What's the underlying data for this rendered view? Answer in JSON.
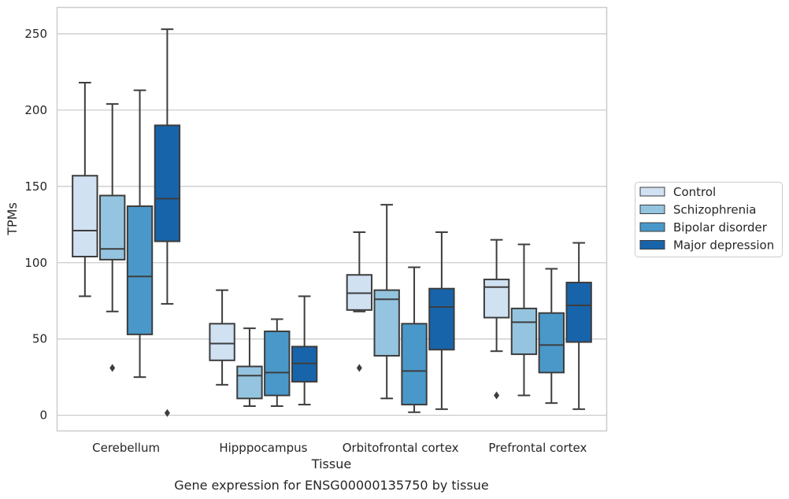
{
  "chart_data": {
    "type": "box",
    "title": "Gene expression for ENSG00000135750 by tissue",
    "xlabel": "Tissue",
    "ylabel": "TPMs",
    "ylim": [
      -10,
      267
    ],
    "yticks": [
      0,
      50,
      100,
      150,
      200,
      250
    ],
    "grid": "y",
    "legend_position": "right",
    "categories": [
      "Cerebellum",
      "Hipppocampus",
      "Orbitofrontal cortex",
      "Prefrontal cortex"
    ],
    "series": [
      {
        "name": "Control",
        "color": "#d0e1f2",
        "boxes": [
          {
            "whisker_low": 78,
            "q1": 104,
            "median": 121,
            "q3": 157,
            "whisker_high": 218,
            "outliers": []
          },
          {
            "whisker_low": 20,
            "q1": 36,
            "median": 47,
            "q3": 60,
            "whisker_high": 82,
            "outliers": []
          },
          {
            "whisker_low": 68,
            "q1": 69,
            "median": 80,
            "q3": 92,
            "whisker_high": 120,
            "outliers": [
              31
            ]
          },
          {
            "whisker_low": 42,
            "q1": 64,
            "median": 84,
            "q3": 89,
            "whisker_high": 115,
            "outliers": [
              13
            ]
          }
        ]
      },
      {
        "name": "Schizophrenia",
        "color": "#94c4df",
        "boxes": [
          {
            "whisker_low": 68,
            "q1": 102,
            "median": 109,
            "q3": 144,
            "whisker_high": 204,
            "outliers": [
              31
            ]
          },
          {
            "whisker_low": 6,
            "q1": 11,
            "median": 26,
            "q3": 32,
            "whisker_high": 57,
            "outliers": []
          },
          {
            "whisker_low": 11,
            "q1": 39,
            "median": 76,
            "q3": 82,
            "whisker_high": 138,
            "outliers": []
          },
          {
            "whisker_low": 13,
            "q1": 40,
            "median": 61,
            "q3": 70,
            "whisker_high": 112,
            "outliers": []
          }
        ]
      },
      {
        "name": "Bipolar disorder",
        "color": "#4a98c9",
        "boxes": [
          {
            "whisker_low": 25,
            "q1": 53,
            "median": 91,
            "q3": 137,
            "whisker_high": 213,
            "outliers": []
          },
          {
            "whisker_low": 6,
            "q1": 13,
            "median": 28,
            "q3": 55,
            "whisker_high": 63,
            "outliers": []
          },
          {
            "whisker_low": 2,
            "q1": 7,
            "median": 29,
            "q3": 60,
            "whisker_high": 97,
            "outliers": []
          },
          {
            "whisker_low": 8,
            "q1": 28,
            "median": 46,
            "q3": 67,
            "whisker_high": 96,
            "outliers": []
          }
        ]
      },
      {
        "name": "Major depression",
        "color": "#1764ab",
        "boxes": [
          {
            "whisker_low": 73,
            "q1": 114,
            "median": 142,
            "q3": 190,
            "whisker_high": 253,
            "outliers": [
              1.5
            ]
          },
          {
            "whisker_low": 7,
            "q1": 22,
            "median": 34,
            "q3": 45,
            "whisker_high": 78,
            "outliers": []
          },
          {
            "whisker_low": 4,
            "q1": 43,
            "median": 71,
            "q3": 83,
            "whisker_high": 120,
            "outliers": []
          },
          {
            "whisker_low": 4,
            "q1": 48,
            "median": 72,
            "q3": 87,
            "whisker_high": 113,
            "outliers": []
          }
        ]
      }
    ]
  }
}
